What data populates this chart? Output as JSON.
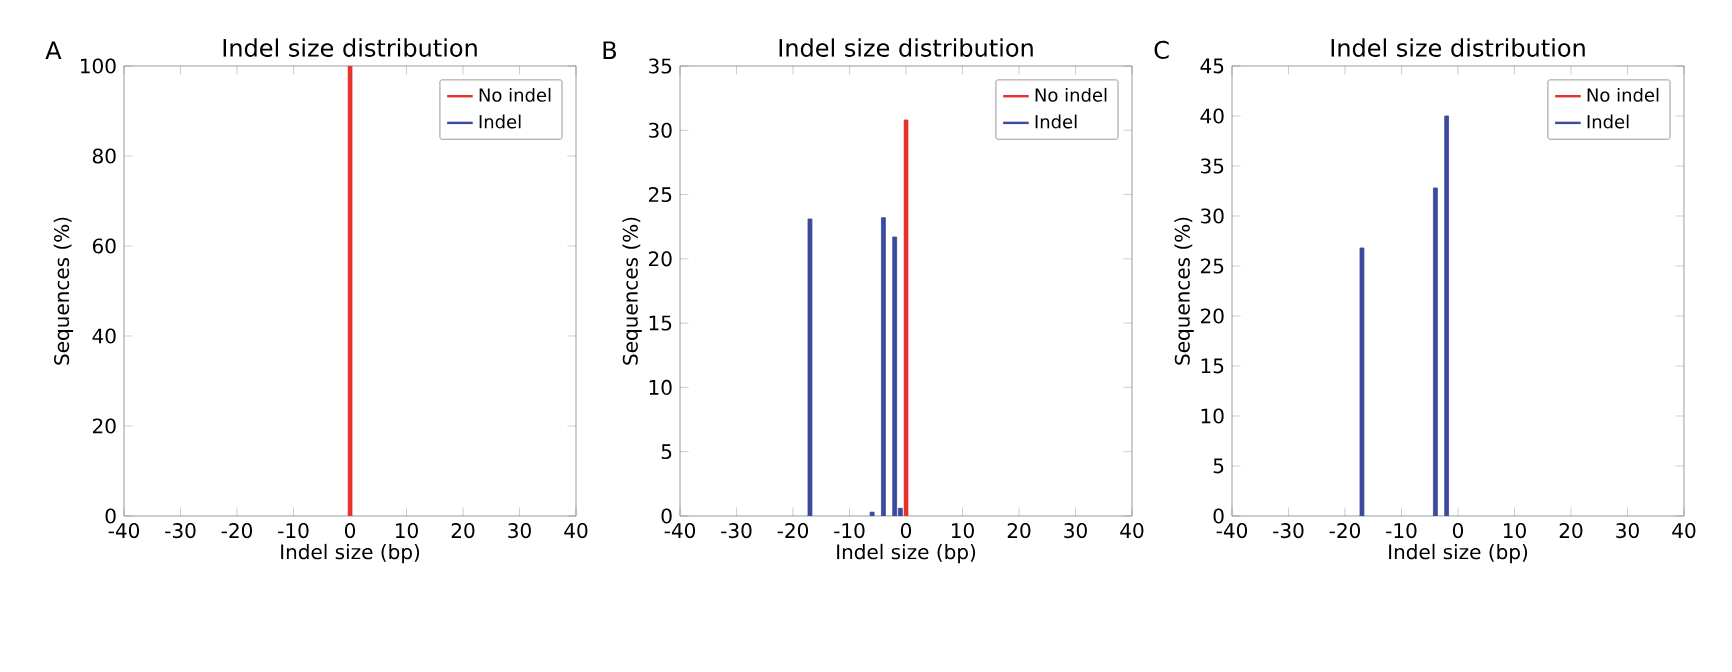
{
  "chart_data": [
    {
      "type": "bar",
      "title": "Indel size distribution",
      "xlabel": "Indel size (bp)",
      "ylabel": "Sequences (%)",
      "annotations": [
        "A"
      ],
      "xlim": [
        -40,
        40
      ],
      "xticks": [
        -40,
        -30,
        -20,
        -10,
        0,
        10,
        20,
        30,
        40
      ],
      "ylim": [
        0,
        100
      ],
      "yticks": [
        0,
        20,
        40,
        60,
        80,
        100
      ],
      "legend": "top right",
      "series": [
        {
          "name": "No indel",
          "color": "#e8312f",
          "x": [
            0
          ],
          "values": [
            100
          ]
        },
        {
          "name": "Indel",
          "color": "#3b4a9c"
        }
      ]
    },
    {
      "type": "bar",
      "title": "Indel size distribution",
      "xlabel": "Indel size (bp)",
      "ylabel": "Sequences (%)",
      "annotations": [
        "B"
      ],
      "xlim": [
        -40,
        40
      ],
      "xticks": [
        -40,
        -30,
        -20,
        -10,
        0,
        10,
        20,
        30,
        40
      ],
      "ylim": [
        0,
        35
      ],
      "yticks": [
        0,
        5,
        10,
        15,
        20,
        25,
        30,
        35
      ],
      "legend": "top right",
      "series": [
        {
          "name": "No indel",
          "color": "#e8312f",
          "x": [
            0
          ],
          "values": [
            30.8
          ]
        },
        {
          "name": "Indel",
          "color": "#3b4a9c",
          "x": [
            -17,
            -6,
            -4,
            -2,
            -1
          ],
          "values": [
            23.1,
            0.3,
            23.2,
            21.7,
            0.6
          ]
        }
      ]
    },
    {
      "type": "bar",
      "title": "Indel size distribution",
      "xlabel": "Indel size (bp)",
      "ylabel": "Sequences (%)",
      "annotations": [
        "C"
      ],
      "xlim": [
        -40,
        40
      ],
      "xticks": [
        -40,
        -30,
        -20,
        -10,
        0,
        10,
        20,
        30,
        40
      ],
      "ylim": [
        0,
        45
      ],
      "yticks": [
        0,
        5,
        10,
        15,
        20,
        25,
        30,
        35,
        40,
        45
      ],
      "legend": "top right",
      "series": [
        {
          "name": "No indel",
          "color": "#e8312f"
        },
        {
          "name": "Indel",
          "color": "#3b4a9c",
          "x": [
            -17,
            -4,
            -2
          ],
          "values": [
            26.8,
            32.8,
            40.0
          ]
        }
      ]
    }
  ]
}
